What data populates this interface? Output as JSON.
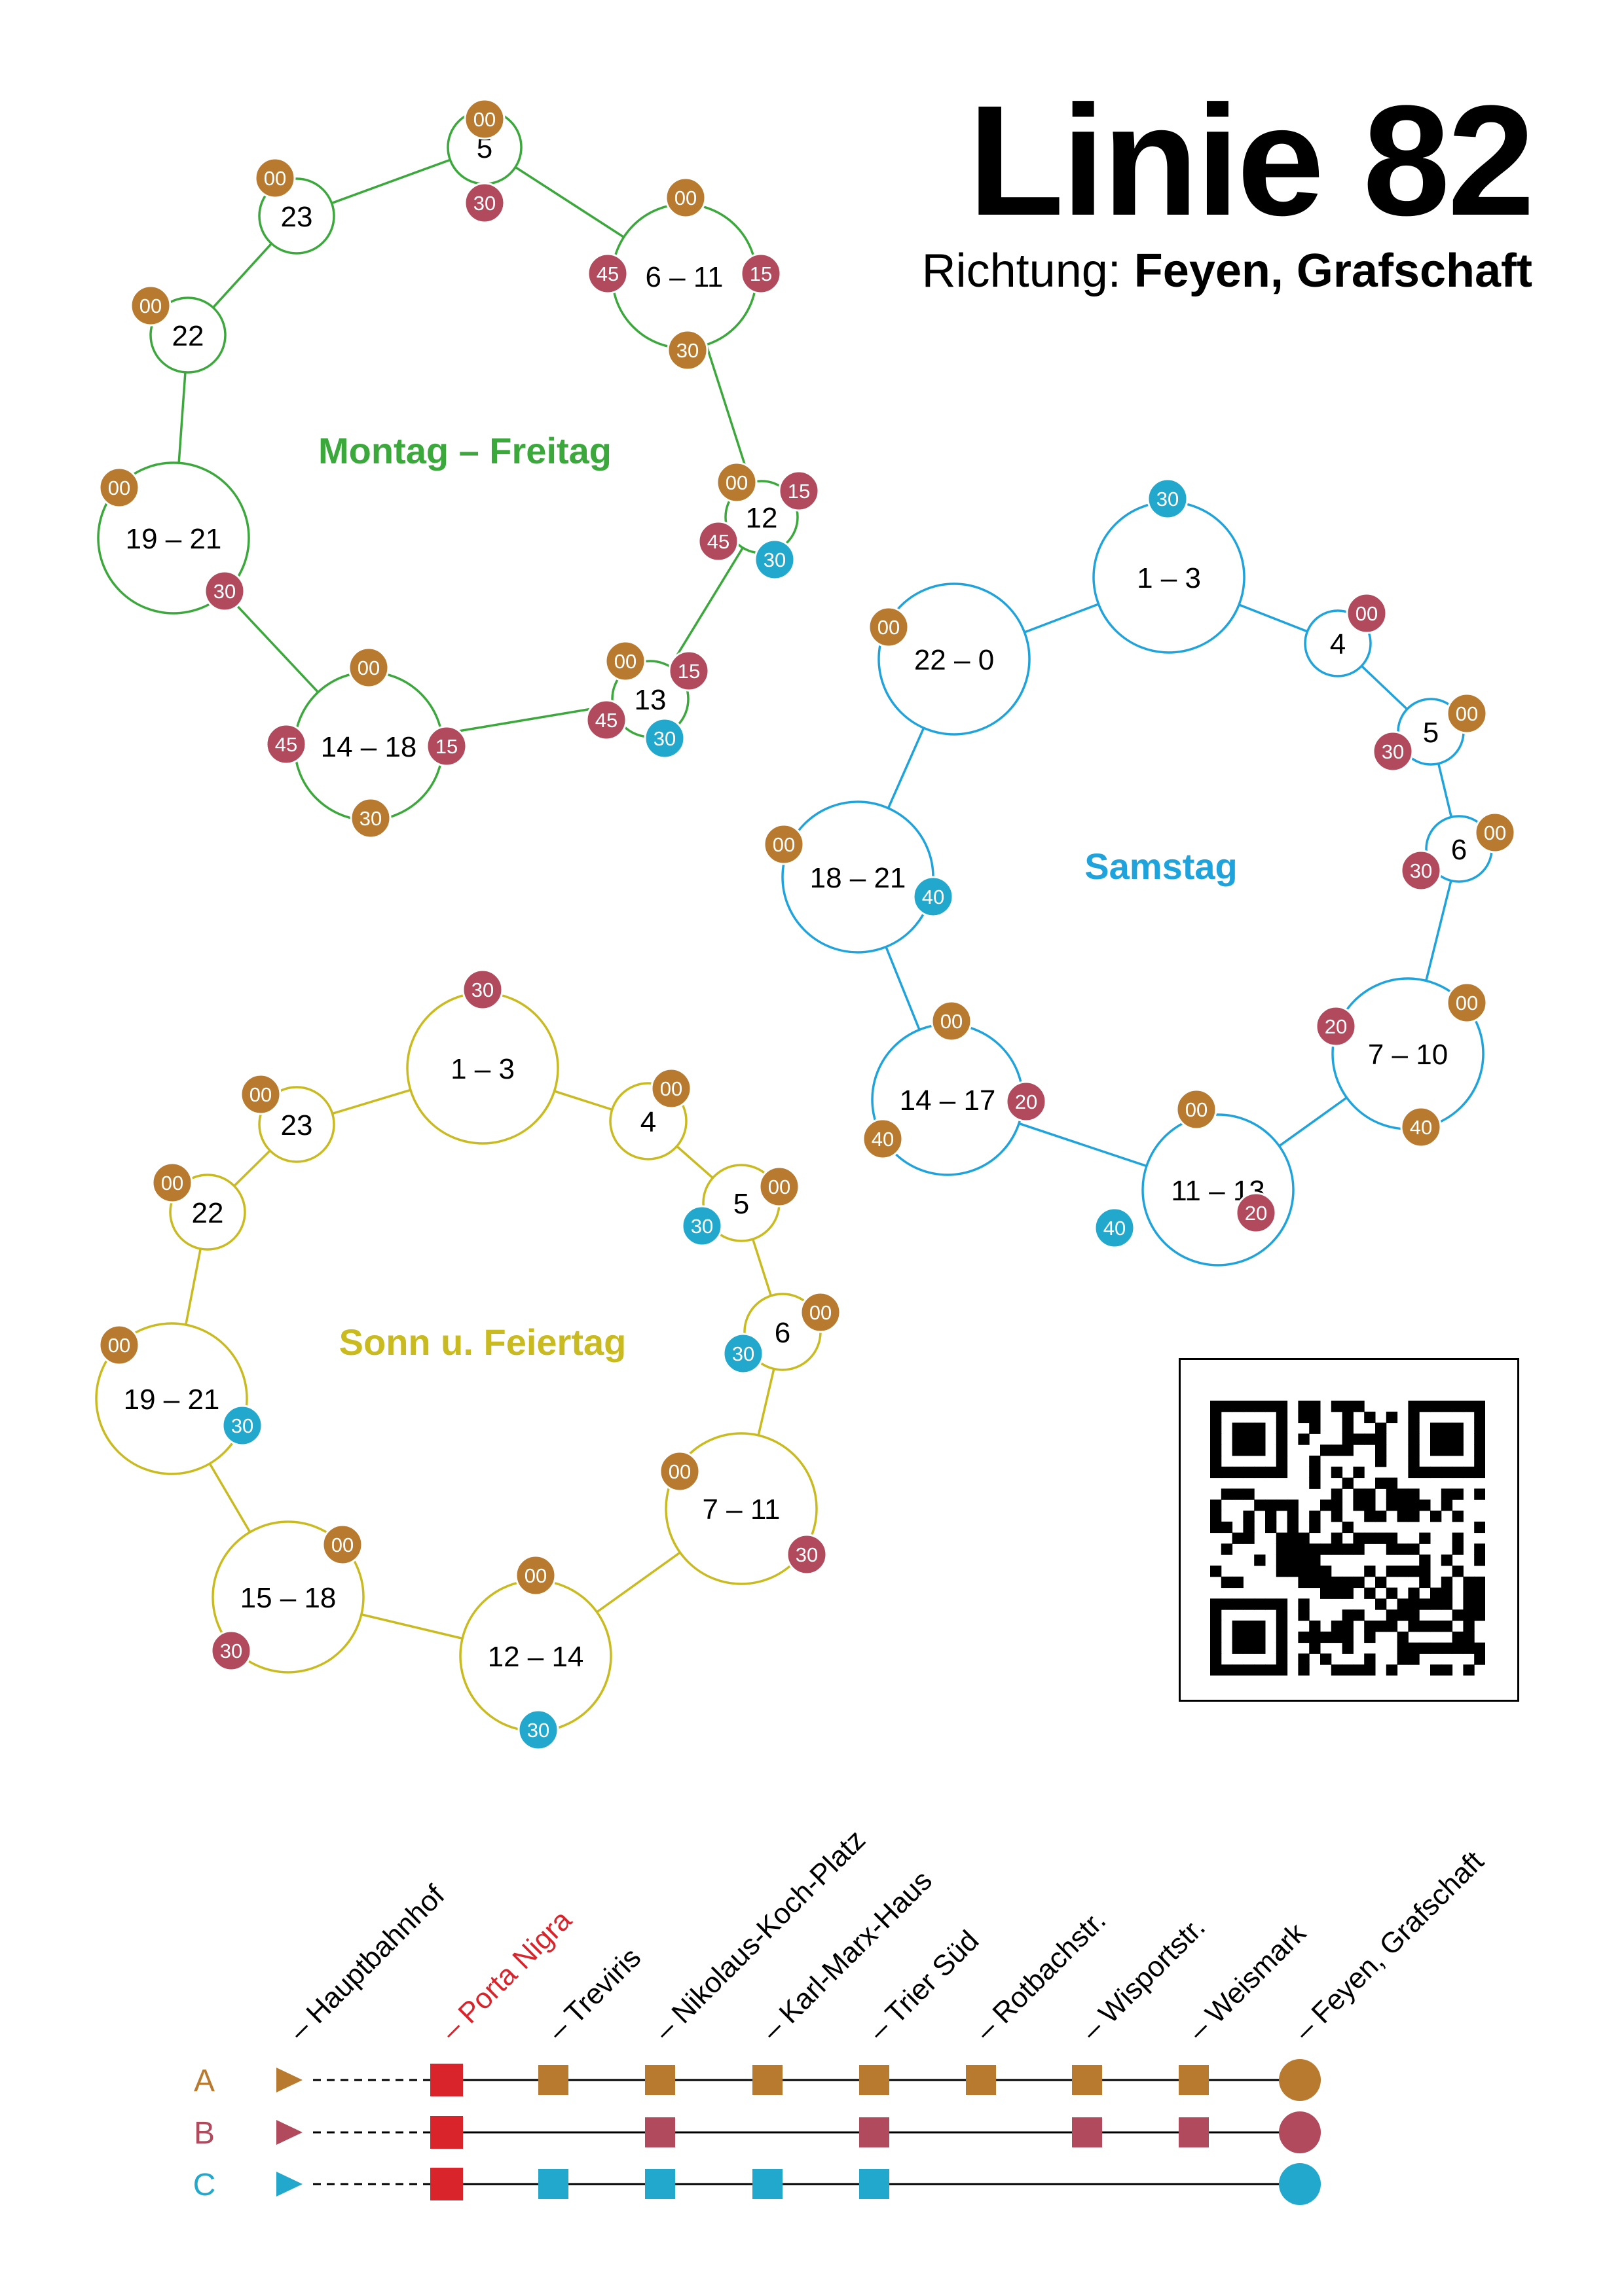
{
  "header": {
    "line_title": "Linie 82",
    "direction_label": "Richtung:",
    "direction_value": "Feyen, Grafschaft"
  },
  "colors": {
    "variant_a": "#B87A2E",
    "variant_b": "#B04A5C",
    "variant_c": "#22A8CC",
    "weekday": "#3BA83B",
    "saturday": "#1FA3DC",
    "sunday": "#C9BB1F",
    "porta_nigra": "#D9242C"
  },
  "schedules": [
    {
      "id": "weekday",
      "label": "Montag – Freitag",
      "color": "#3BA83B",
      "hours": [
        {
          "label": "5",
          "minutes": [
            {
              "v": "00",
              "t": "A"
            },
            {
              "v": "30",
              "t": "B"
            }
          ]
        },
        {
          "label": "6 – 11",
          "minutes": [
            {
              "v": "00",
              "t": "A"
            },
            {
              "v": "15",
              "t": "B"
            },
            {
              "v": "30",
              "t": "A"
            },
            {
              "v": "45",
              "t": "B"
            }
          ]
        },
        {
          "label": "12",
          "minutes": [
            {
              "v": "00",
              "t": "A"
            },
            {
              "v": "15",
              "t": "B"
            },
            {
              "v": "30",
              "t": "C"
            },
            {
              "v": "45",
              "t": "B"
            }
          ]
        },
        {
          "label": "13",
          "minutes": [
            {
              "v": "00",
              "t": "A"
            },
            {
              "v": "15",
              "t": "B"
            },
            {
              "v": "30",
              "t": "C"
            },
            {
              "v": "45",
              "t": "B"
            }
          ]
        },
        {
          "label": "14 – 18",
          "minutes": [
            {
              "v": "00",
              "t": "A"
            },
            {
              "v": "15",
              "t": "B"
            },
            {
              "v": "30",
              "t": "A"
            },
            {
              "v": "45",
              "t": "B"
            }
          ]
        },
        {
          "label": "19 – 21",
          "minutes": [
            {
              "v": "00",
              "t": "A"
            },
            {
              "v": "30",
              "t": "B"
            }
          ]
        },
        {
          "label": "22",
          "minutes": [
            {
              "v": "00",
              "t": "A"
            }
          ]
        },
        {
          "label": "23",
          "minutes": [
            {
              "v": "00",
              "t": "A"
            }
          ]
        }
      ]
    },
    {
      "id": "saturday",
      "label": "Samstag",
      "color": "#1FA3DC",
      "hours": [
        {
          "label": "1 – 3",
          "minutes": [
            {
              "v": "30",
              "t": "C"
            }
          ]
        },
        {
          "label": "4",
          "minutes": [
            {
              "v": "00",
              "t": "B"
            }
          ]
        },
        {
          "label": "5",
          "minutes": [
            {
              "v": "00",
              "t": "A"
            },
            {
              "v": "30",
              "t": "B"
            }
          ]
        },
        {
          "label": "6",
          "minutes": [
            {
              "v": "00",
              "t": "A"
            },
            {
              "v": "30",
              "t": "B"
            }
          ]
        },
        {
          "label": "7 – 10",
          "minutes": [
            {
              "v": "00",
              "t": "A"
            },
            {
              "v": "20",
              "t": "B"
            },
            {
              "v": "40",
              "t": "A"
            }
          ]
        },
        {
          "label": "11 – 13",
          "minutes": [
            {
              "v": "00",
              "t": "A"
            },
            {
              "v": "20",
              "t": "B"
            },
            {
              "v": "40",
              "t": "C"
            }
          ]
        },
        {
          "label": "14 – 17",
          "minutes": [
            {
              "v": "00",
              "t": "A"
            },
            {
              "v": "20",
              "t": "B"
            },
            {
              "v": "40",
              "t": "A"
            }
          ]
        },
        {
          "label": "18 – 21",
          "minutes": [
            {
              "v": "00",
              "t": "A"
            },
            {
              "v": "40",
              "t": "C"
            }
          ]
        },
        {
          "label": "22 – 0",
          "minutes": [
            {
              "v": "00",
              "t": "A"
            }
          ]
        }
      ]
    },
    {
      "id": "sunday",
      "label": "Sonn u. Feiertag",
      "color": "#C9BB1F",
      "hours": [
        {
          "label": "1 – 3",
          "minutes": [
            {
              "v": "30",
              "t": "B"
            }
          ]
        },
        {
          "label": "4",
          "minutes": [
            {
              "v": "00",
              "t": "A"
            }
          ]
        },
        {
          "label": "5",
          "minutes": [
            {
              "v": "00",
              "t": "A"
            },
            {
              "v": "30",
              "t": "C"
            }
          ]
        },
        {
          "label": "6",
          "minutes": [
            {
              "v": "00",
              "t": "A"
            },
            {
              "v": "30",
              "t": "C"
            }
          ]
        },
        {
          "label": "7 – 11",
          "minutes": [
            {
              "v": "00",
              "t": "A"
            },
            {
              "v": "30",
              "t": "B"
            }
          ]
        },
        {
          "label": "12 – 14",
          "minutes": [
            {
              "v": "00",
              "t": "A"
            },
            {
              "v": "30",
              "t": "C"
            }
          ]
        },
        {
          "label": "15 – 18",
          "minutes": [
            {
              "v": "00",
              "t": "A"
            },
            {
              "v": "30",
              "t": "B"
            }
          ]
        },
        {
          "label": "19 – 21",
          "minutes": [
            {
              "v": "00",
              "t": "A"
            },
            {
              "v": "30",
              "t": "C"
            }
          ]
        },
        {
          "label": "22",
          "minutes": [
            {
              "v": "00",
              "t": "A"
            }
          ]
        },
        {
          "label": "23",
          "minutes": [
            {
              "v": "00",
              "t": "A"
            }
          ]
        }
      ]
    }
  ],
  "route": {
    "stops": [
      "– Hauptbahnhof",
      "– Porta Nigra",
      "– Treviris",
      "– Nikolaus-Koch-Platz",
      "– Karl-Marx-Haus",
      "– Trier Süd",
      "– Rotbachstr.",
      "– Wisportstr.",
      "– Weismark",
      "– Feyen, Grafschaft"
    ],
    "highlight_stop": 1,
    "variants": [
      {
        "label": "A",
        "stops_served": [
          1,
          2,
          3,
          4,
          5,
          6,
          7,
          8
        ]
      },
      {
        "label": "B",
        "stops_served": [
          1,
          3,
          5,
          7,
          8
        ]
      },
      {
        "label": "C",
        "stops_served": [
          1,
          2,
          3,
          4,
          5
        ]
      }
    ]
  },
  "qr_code": {
    "icon": "qr-code-icon"
  }
}
